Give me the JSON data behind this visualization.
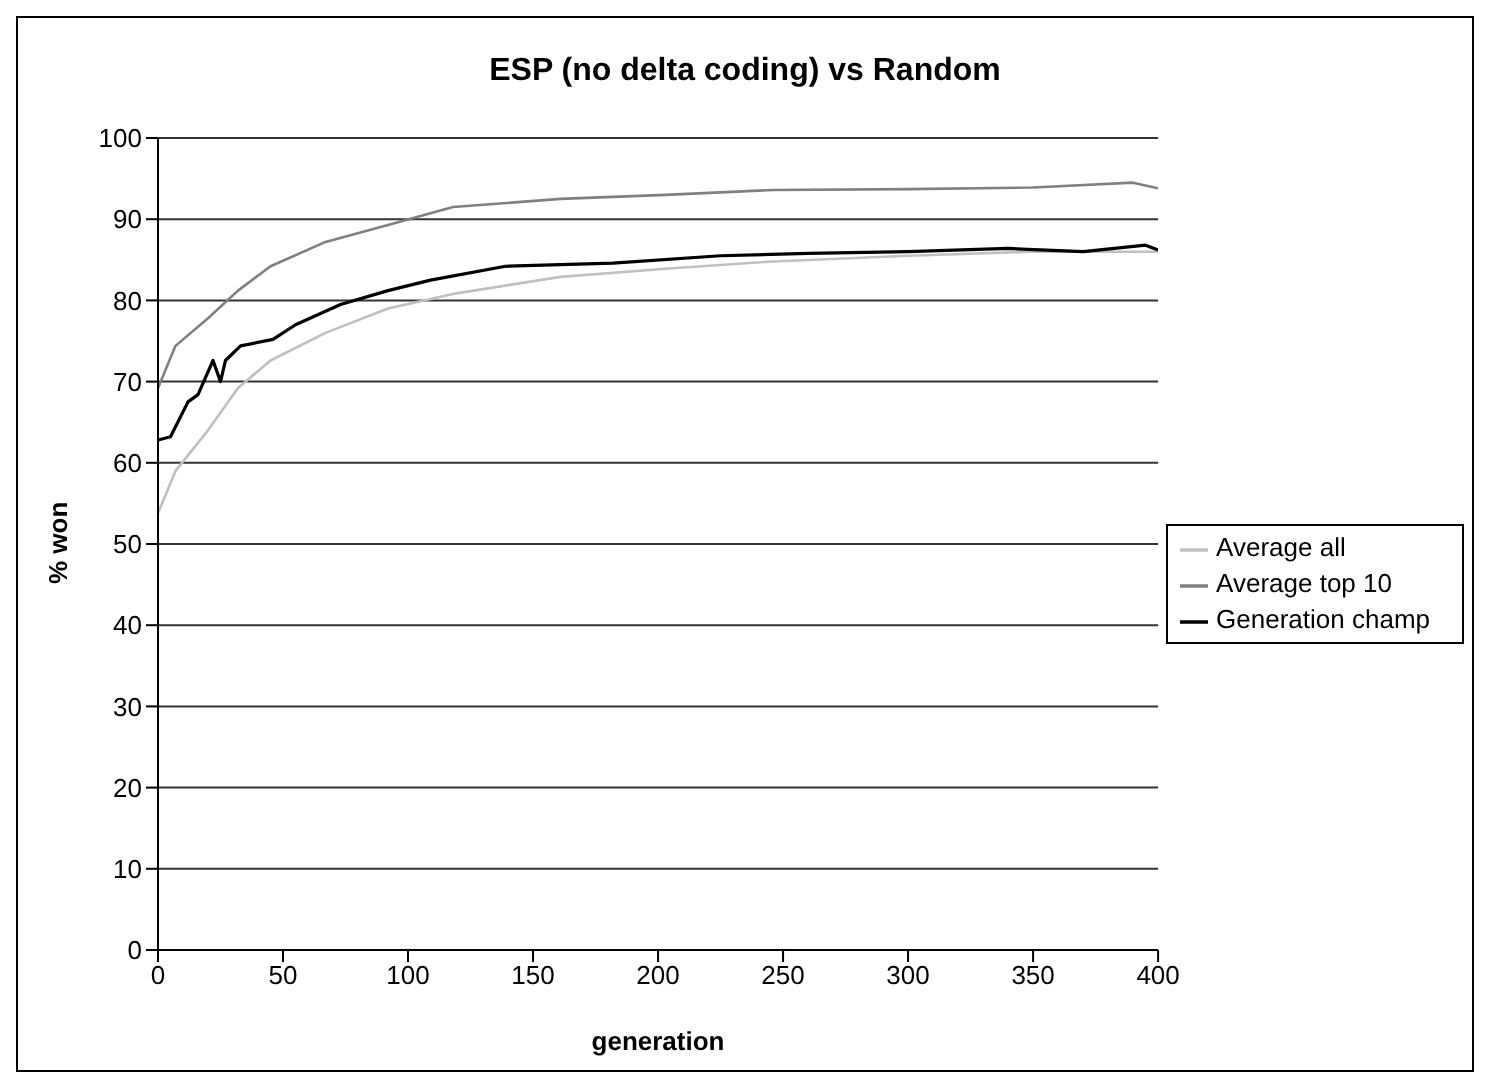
{
  "chart_data": {
    "type": "line",
    "title": "ESP (no delta coding) vs Random",
    "xlabel": "generation",
    "ylabel": "% won",
    "xlim": [
      0,
      400
    ],
    "xticks": [
      0,
      50,
      100,
      150,
      200,
      250,
      300,
      350,
      400
    ],
    "ylim": [
      0,
      100
    ],
    "yticks": [
      0,
      10,
      20,
      30,
      40,
      50,
      60,
      70,
      80,
      90,
      100
    ],
    "grid": "y",
    "legend": "right",
    "marker": "none",
    "line_style": "solid",
    "series": [
      {
        "name": "Average top 10",
        "color": "#808080",
        "x": [
          0,
          7,
          20,
          32,
          45,
          67,
          92,
          118,
          161,
          203,
          246,
          300,
          350,
          390,
          400
        ],
        "values": [
          69.2,
          74.4,
          77.8,
          81.2,
          84.2,
          87.2,
          89.3,
          91.5,
          92.5,
          93,
          93.6,
          93.7,
          93.9,
          94.5,
          93.8
        ]
      },
      {
        "name": "Average all",
        "color": "#c0c0c0",
        "x": [
          0,
          7,
          20,
          32,
          45,
          67,
          92,
          118,
          161,
          203,
          246,
          300,
          350,
          400
        ],
        "values": [
          53.8,
          59,
          64,
          69.2,
          72.6,
          76,
          79,
          80.8,
          82.9,
          83.9,
          84.8,
          85.5,
          86,
          86
        ]
      },
      {
        "name": "Generation champ",
        "color": "#000000",
        "x": [
          0,
          5,
          12,
          16,
          22,
          25,
          27,
          33,
          46,
          55,
          73,
          92,
          109,
          139,
          182,
          225,
          260,
          300,
          340,
          370,
          395,
          400
        ],
        "values": [
          62.8,
          63.2,
          67.5,
          68.4,
          72.6,
          70,
          72.6,
          74.4,
          75.2,
          77,
          79.5,
          81.2,
          82.5,
          84.2,
          84.6,
          85.5,
          85.8,
          86,
          86.4,
          86,
          86.8,
          86.2
        ]
      }
    ]
  }
}
